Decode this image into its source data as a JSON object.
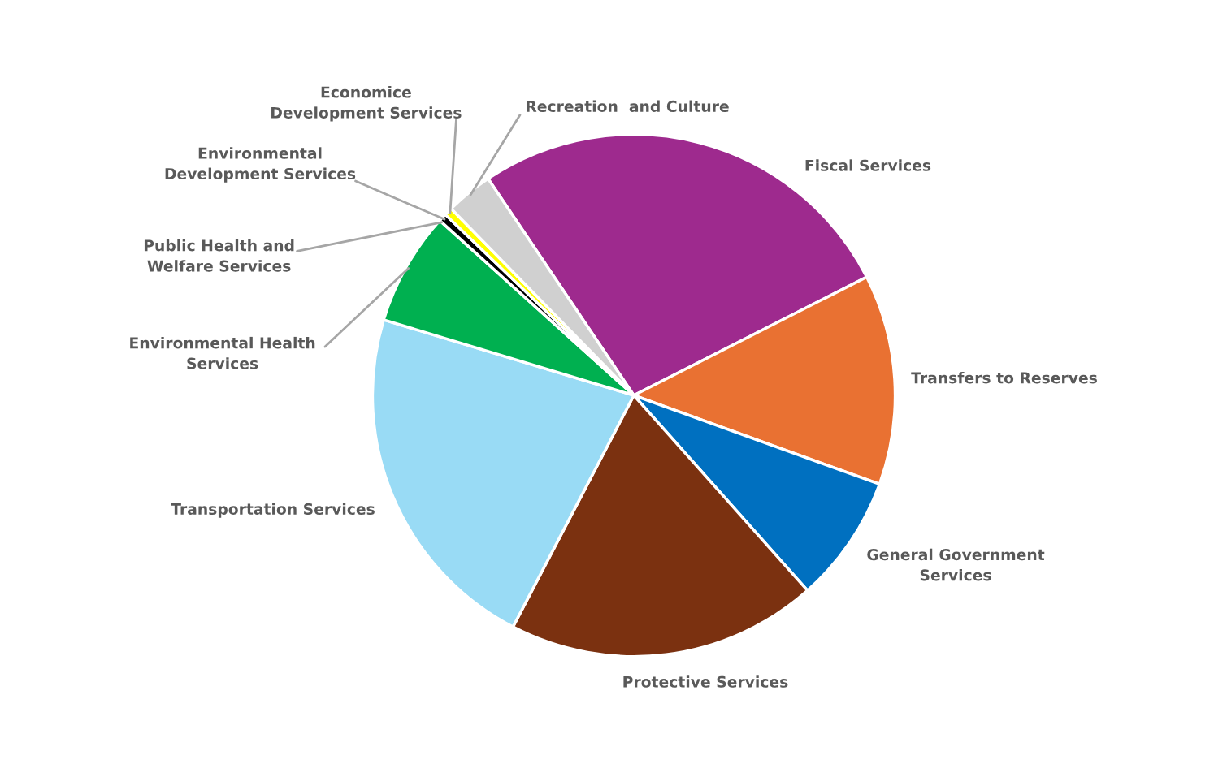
{
  "chart_data": {
    "type": "pie",
    "categories": [
      "Fiscal Services",
      "Transfers to Reserves",
      "General Government\nServices",
      "Protective Services",
      "Transportation Services",
      "Environmental Health\nServices",
      "Public Health and\nWelfare Services",
      "Environmental\nDevelopment Services",
      "Economice\nDevelopment Services",
      "Recreation  and Culture"
    ],
    "values": [
      26.9,
      13.0,
      7.9,
      19.2,
      22.0,
      7.0,
      null,
      0.5,
      0.5,
      2.9
    ],
    "colors": [
      "#9e2a8e",
      "#e97132",
      "#0070c0",
      "#7b3110",
      "#99dbf5",
      "#00b050",
      "#ffffff",
      "#000000",
      "#ffff00",
      "#d0d0d0"
    ]
  }
}
